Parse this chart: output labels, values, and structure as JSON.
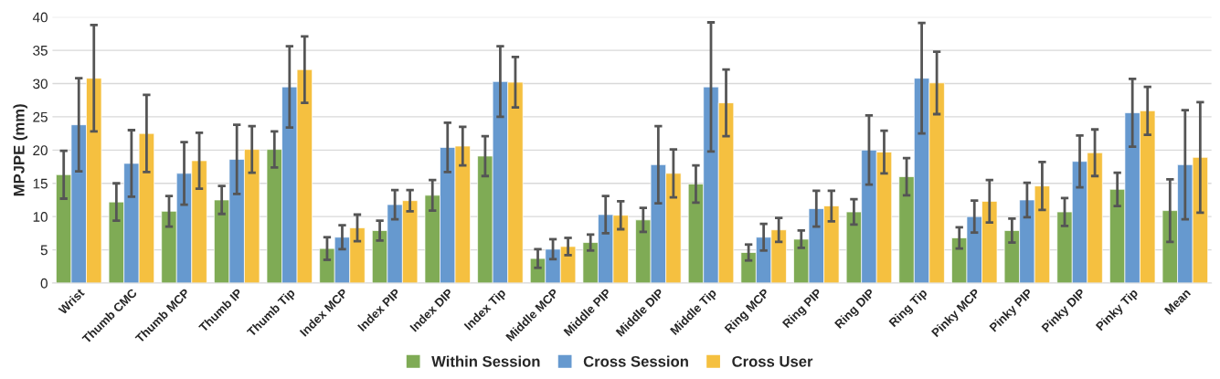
{
  "chart_data": {
    "type": "bar",
    "ylabel": "MPJPE (mm)",
    "categories": [
      "Wrist",
      "Thumb CMC",
      "Thumb MCP",
      "Thumb IP",
      "Thumb Tip",
      "Index MCP",
      "Index PIP",
      "Index DIP",
      "Index Tip",
      "Middle MCP",
      "Middle PIP",
      "Middle DIP",
      "Middle Tip",
      "Ring MCP",
      "Ring PIP",
      "Ring DIP",
      "Ring Tip",
      "Pinky MCP",
      "Pinky PIP",
      "Pinky DIP",
      "Pinky Tip",
      "Mean"
    ],
    "series": [
      {
        "name": "Within Session",
        "color": "#7fab55",
        "values": [
          16.3,
          12.2,
          10.8,
          12.5,
          20.1,
          5.2,
          7.9,
          13.2,
          19.1,
          3.7,
          6.1,
          9.5,
          14.9,
          4.6,
          6.6,
          10.7,
          16.0,
          6.8,
          7.9,
          10.7,
          14.1,
          10.9
        ],
        "errors": [
          3.6,
          2.8,
          2.3,
          2.1,
          2.7,
          1.7,
          1.5,
          2.3,
          3.0,
          1.4,
          1.2,
          1.8,
          2.8,
          1.2,
          1.3,
          1.9,
          2.8,
          1.6,
          1.8,
          2.1,
          2.5,
          4.7
        ]
      },
      {
        "name": "Cross Session",
        "color": "#6699cf",
        "values": [
          23.8,
          18.0,
          16.5,
          18.6,
          29.5,
          6.9,
          11.8,
          20.4,
          30.3,
          5.1,
          10.3,
          17.8,
          29.5,
          6.9,
          11.2,
          20.0,
          30.8,
          10.0,
          12.5,
          18.3,
          25.6,
          17.8
        ],
        "errors": [
          7.0,
          5.0,
          4.7,
          5.2,
          6.1,
          1.8,
          2.2,
          3.7,
          5.3,
          1.5,
          2.8,
          5.8,
          9.7,
          2.0,
          2.7,
          5.2,
          8.3,
          2.4,
          2.6,
          3.9,
          5.1,
          8.2
        ]
      },
      {
        "name": "Cross User",
        "color": "#f5c040",
        "values": [
          30.8,
          22.5,
          18.4,
          20.1,
          32.1,
          8.3,
          12.4,
          20.6,
          30.2,
          5.5,
          10.2,
          16.5,
          27.1,
          8.0,
          11.6,
          19.7,
          30.1,
          12.3,
          14.6,
          19.6,
          25.9,
          18.9
        ],
        "errors": [
          8.0,
          5.8,
          4.2,
          3.5,
          5.0,
          2.0,
          1.6,
          2.9,
          3.8,
          1.3,
          2.1,
          3.6,
          5.0,
          1.8,
          2.3,
          3.2,
          4.7,
          3.2,
          3.6,
          3.5,
          3.6,
          8.3
        ]
      }
    ],
    "ylim": [
      0,
      40
    ],
    "yticks": [
      0,
      5,
      10,
      15,
      20,
      25,
      30,
      35,
      40
    ],
    "grid": "y",
    "legend": "bottom"
  }
}
